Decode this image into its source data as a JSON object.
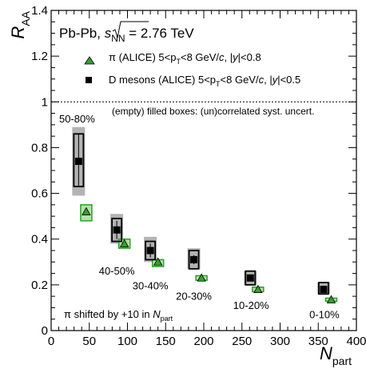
{
  "chart_data": {
    "type": "scatter",
    "xlabel": {
      "main": "N",
      "sub": "part"
    },
    "ylabel": {
      "main": "R",
      "sub": "AA"
    },
    "xlim": [
      0,
      400
    ],
    "ylim": [
      0,
      1.4
    ],
    "xticks": [
      "0",
      "50",
      "100",
      "150",
      "200",
      "250",
      "300",
      "350",
      "400"
    ],
    "yticks": [
      "0",
      "0.2",
      "0.4",
      "0.6",
      "0.8",
      "1",
      "1.2",
      "1.4"
    ],
    "reference_line_y": 1,
    "system": {
      "prefix": "Pb-Pb, ",
      "sqrt": "s",
      "sub": "NN",
      "suffix": " = 2.76 TeV"
    },
    "legend": [
      {
        "marker": "triangle",
        "label": "π  (ALICE) 5<p<sub>T</sub><8 GeV/c, |y|<0.8"
      },
      {
        "marker": "square",
        "label": "D mesons (ALICE) 5<p<sub>T</sub><8 GeV/c, |y|<0.5"
      }
    ],
    "legend_text": {
      "pi": [
        "π  (ALICE) 5<p",
        "T",
        "<8 GeV/",
        "c",
        ", |",
        "y",
        "|<0.8"
      ],
      "d": [
        "D mesons (ALICE) 5<p",
        "T",
        "<8 GeV/",
        "c",
        ", |",
        "y",
        "|<0.5"
      ]
    },
    "note": "(empty) filled boxes: (un)correlated syst. uncert.",
    "shift_note": {
      "text": "π  shifted by +10 in  ",
      "n": "N",
      "sub": "part"
    },
    "centrality_labels": [
      {
        "text": "50-80%",
        "x": 36,
        "y": 0.91
      },
      {
        "text": "40-50%",
        "x": 86,
        "y": 0.245
      },
      {
        "text": "30-40%",
        "x": 130,
        "y": 0.18
      },
      {
        "text": "20-30%",
        "x": 187,
        "y": 0.135
      },
      {
        "text": "10-20%",
        "x": 262,
        "y": 0.095
      },
      {
        "text": "0-10%",
        "x": 358,
        "y": 0.055
      }
    ],
    "series": [
      {
        "name": "D mesons (ALICE)",
        "marker": "square",
        "color": "#000000",
        "points": [
          {
            "x": 36,
            "y": 0.74,
            "stat": [
              0.63,
              0.86
            ],
            "syst_corr": [
              0.59,
              0.89
            ],
            "syst_uncorr": [
              0.63,
              0.86
            ]
          },
          {
            "x": 86,
            "y": 0.44,
            "stat": [
              0.4,
              0.48
            ],
            "syst_corr": [
              0.38,
              0.51
            ],
            "syst_uncorr": [
              0.39,
              0.49
            ]
          },
          {
            "x": 130,
            "y": 0.35,
            "stat": [
              0.32,
              0.38
            ],
            "syst_corr": [
              0.3,
              0.41
            ],
            "syst_uncorr": [
              0.31,
              0.39
            ]
          },
          {
            "x": 187,
            "y": 0.31,
            "stat": [
              0.29,
              0.33
            ],
            "syst_corr": [
              0.27,
              0.36
            ],
            "syst_uncorr": [
              0.27,
              0.35
            ]
          },
          {
            "x": 261,
            "y": 0.23,
            "stat": [
              0.22,
              0.24
            ],
            "syst_corr": [
              0.2,
              0.26
            ],
            "syst_uncorr": [
              0.2,
              0.26
            ]
          },
          {
            "x": 357,
            "y": 0.18,
            "stat": [
              0.17,
              0.19
            ],
            "syst_corr": [
              0.16,
              0.21
            ],
            "syst_uncorr": [
              0.16,
              0.21
            ]
          }
        ]
      },
      {
        "name": "π (ALICE)",
        "marker": "triangle",
        "color": "#2e9e2e",
        "points": [
          {
            "x": 46,
            "y": 0.52,
            "syst": [
              0.48,
              0.55
            ]
          },
          {
            "x": 96,
            "y": 0.38,
            "syst": [
              0.36,
              0.4
            ]
          },
          {
            "x": 140,
            "y": 0.3,
            "syst": [
              0.28,
              0.31
            ]
          },
          {
            "x": 197,
            "y": 0.23,
            "syst": [
              0.22,
              0.24
            ]
          },
          {
            "x": 271,
            "y": 0.18,
            "syst": [
              0.17,
              0.19
            ]
          },
          {
            "x": 367,
            "y": 0.135,
            "syst": [
              0.13,
              0.14
            ]
          }
        ]
      }
    ],
    "colors": {
      "syst_corr": "#b3b3b3",
      "pion_fill": "#33a02c",
      "pion_box_fill": "#b8e0a8",
      "pion_box_stroke": "#2e9e2e"
    }
  }
}
